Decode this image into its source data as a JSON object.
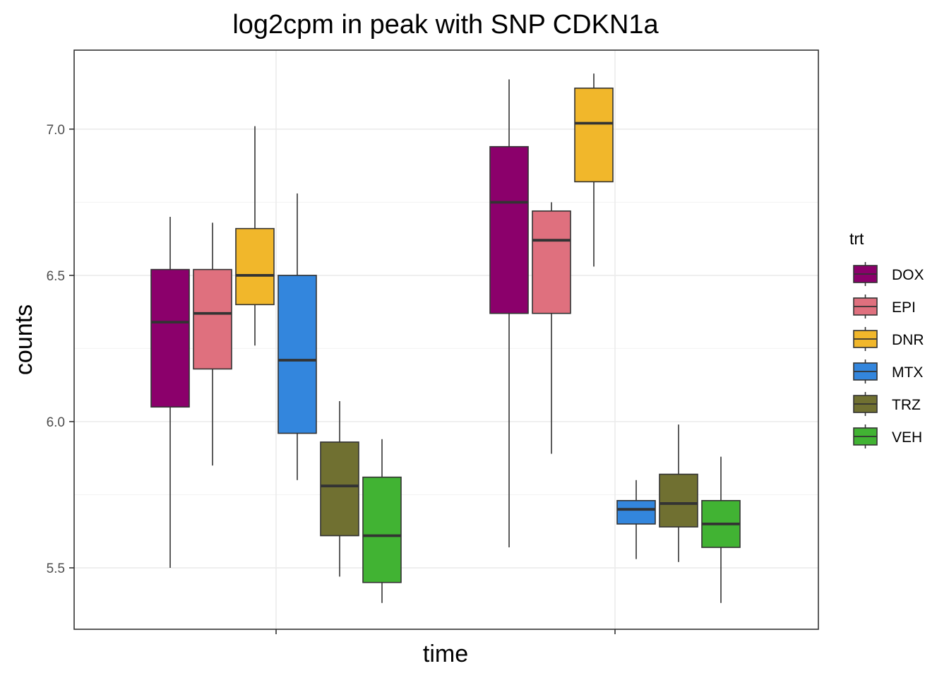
{
  "chart_data": {
    "type": "box",
    "title": "log2cpm in peak with SNP CDKN1a",
    "xlabel": "time",
    "ylabel": "counts",
    "ylim": [
      5.29,
      7.27
    ],
    "yticks": [
      5.5,
      6.0,
      6.5,
      7.0
    ],
    "ytick_labels": [
      "5.5",
      "6.0",
      "6.5",
      "7.0"
    ],
    "grid": true,
    "legend": {
      "title": "trt",
      "position": "right",
      "entries": [
        {
          "name": "DOX",
          "color": "#8B006B"
        },
        {
          "name": "EPI",
          "color": "#DF707E"
        },
        {
          "name": "DNR",
          "color": "#F1B72B"
        },
        {
          "name": "MTX",
          "color": "#3386DD"
        },
        {
          "name": "TRZ",
          "color": "#707031"
        },
        {
          "name": "VEH",
          "color": "#41B333"
        }
      ]
    },
    "groups": [
      {
        "boxes": [
          {
            "trt": "DOX",
            "whisker_low": 5.5,
            "q1": 6.05,
            "median": 6.34,
            "q3": 6.52,
            "whisker_high": 6.7
          },
          {
            "trt": "EPI",
            "whisker_low": 5.85,
            "q1": 6.18,
            "median": 6.37,
            "q3": 6.52,
            "whisker_high": 6.68
          },
          {
            "trt": "DNR",
            "whisker_low": 6.26,
            "q1": 6.4,
            "median": 6.5,
            "q3": 6.66,
            "whisker_high": 7.01
          },
          {
            "trt": "MTX",
            "whisker_low": 5.8,
            "q1": 5.96,
            "median": 6.21,
            "q3": 6.5,
            "whisker_high": 6.78
          },
          {
            "trt": "TRZ",
            "whisker_low": 5.47,
            "q1": 5.61,
            "median": 5.78,
            "q3": 5.93,
            "whisker_high": 6.07
          },
          {
            "trt": "VEH",
            "whisker_low": 5.38,
            "q1": 5.45,
            "median": 5.61,
            "q3": 5.81,
            "whisker_high": 5.94
          }
        ]
      },
      {
        "boxes": [
          {
            "trt": "DOX",
            "whisker_low": 5.57,
            "q1": 6.37,
            "median": 6.75,
            "q3": 6.94,
            "whisker_high": 7.17
          },
          {
            "trt": "EPI",
            "whisker_low": 5.89,
            "q1": 6.37,
            "median": 6.62,
            "q3": 6.72,
            "whisker_high": 6.75
          },
          {
            "trt": "DNR",
            "whisker_low": 6.53,
            "q1": 6.82,
            "median": 7.02,
            "q3": 7.14,
            "whisker_high": 7.19
          },
          {
            "trt": "MTX",
            "whisker_low": 5.53,
            "q1": 5.65,
            "median": 5.7,
            "q3": 5.73,
            "whisker_high": 5.8
          },
          {
            "trt": "TRZ",
            "whisker_low": 5.52,
            "q1": 5.64,
            "median": 5.72,
            "q3": 5.82,
            "whisker_high": 5.99
          },
          {
            "trt": "VEH",
            "whisker_low": 5.38,
            "q1": 5.57,
            "median": 5.65,
            "q3": 5.73,
            "whisker_high": 5.88
          }
        ]
      }
    ]
  }
}
